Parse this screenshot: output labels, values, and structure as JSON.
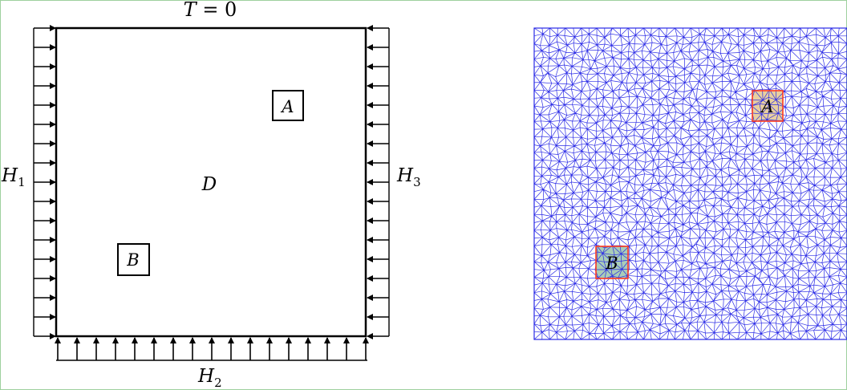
{
  "left_panel": {
    "top_label": {
      "symbol": "T",
      "rest": " = 0"
    },
    "left_label": {
      "symbol": "H",
      "sub": "1"
    },
    "right_label": {
      "symbol": "H",
      "sub": "3"
    },
    "bottom_label": {
      "symbol": "H",
      "sub": "2"
    },
    "domain_label": "D",
    "box_a": "A",
    "box_b": "B"
  },
  "right_panel": {
    "box_a": "A",
    "box_b": "B",
    "colors": {
      "mesh": "#2a2ae6",
      "region_a_fill": "#e8cfa0",
      "region_b_fill": "#a9cdb8",
      "region_outline": "#ff3b1f"
    }
  }
}
